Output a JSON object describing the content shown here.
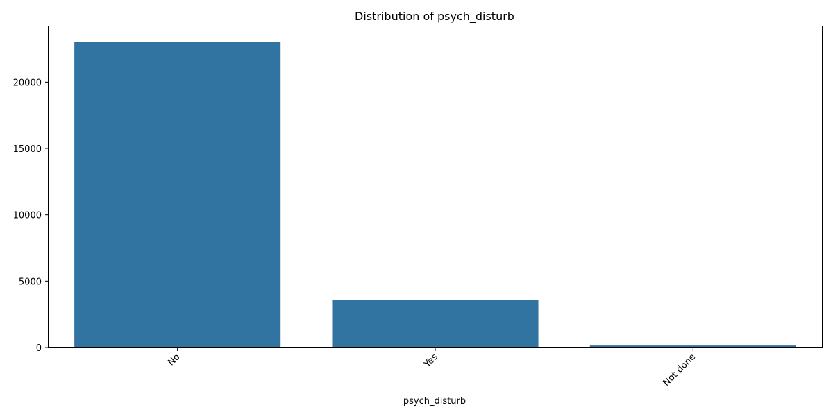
{
  "chart_data": {
    "type": "bar",
    "title": "Distribution of psych_disturb",
    "xlabel": "psych_disturb",
    "ylabel": "",
    "categories": [
      "No",
      "Yes",
      "Not done"
    ],
    "values": [
      23050,
      3600,
      150
    ],
    "ylim": [
      0,
      24200
    ],
    "yticks": [
      0,
      5000,
      10000,
      15000,
      20000
    ],
    "bar_color": "#3274a1",
    "grid": false,
    "legend": "none"
  }
}
